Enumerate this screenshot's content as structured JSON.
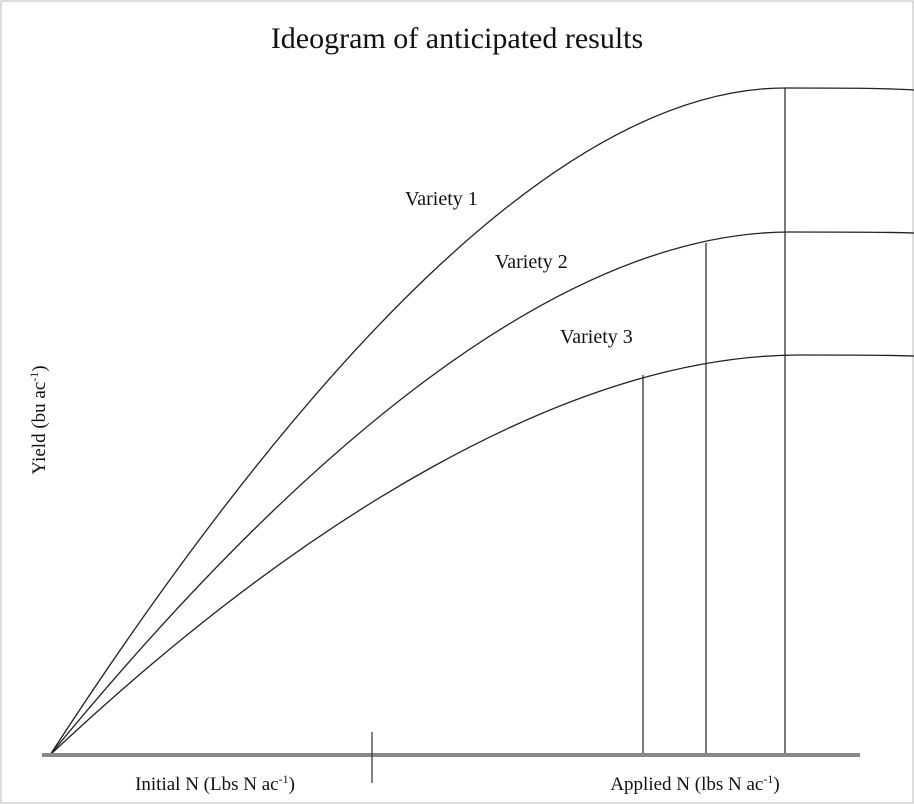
{
  "title": "Ideogram of anticipated results",
  "curve_labels": [
    "Variety 1",
    "Variety 2",
    "Variety 3"
  ],
  "y_axis_label": {
    "text": "Yield (bu ac",
    "superscript": "-1",
    "suffix": ")"
  },
  "x_axis_labels": [
    {
      "text": "Initial N (Lbs N ac",
      "superscript": "-1",
      "suffix": ")"
    },
    {
      "text": "Applied N (lbs N ac",
      "superscript": "-1",
      "suffix": ")"
    }
  ]
}
